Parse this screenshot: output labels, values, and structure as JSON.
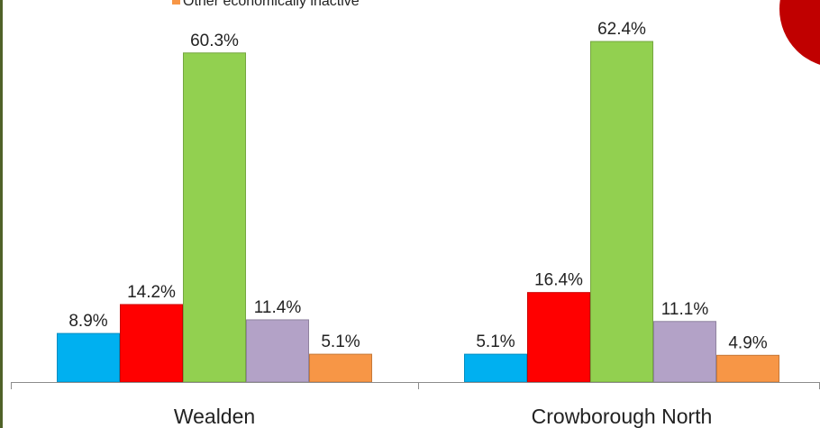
{
  "chart_data": {
    "type": "bar",
    "categories": [
      "Wealden",
      "Crowborough North"
    ],
    "series": [
      {
        "color": "#00b0f0",
        "values": [
          8.9,
          5.1
        ],
        "value_labels": [
          "8.9%",
          "5.1%"
        ]
      },
      {
        "color": "#ff0000",
        "values": [
          14.2,
          16.4
        ],
        "value_labels": [
          "14.2%",
          "16.4%"
        ]
      },
      {
        "color": "#92d050",
        "values": [
          60.3,
          62.4
        ],
        "value_labels": [
          "60.3%",
          "62.4%"
        ]
      },
      {
        "color": "#b3a2c7",
        "values": [
          11.4,
          11.1
        ],
        "value_labels": [
          "11.4%",
          "11.1%"
        ]
      },
      {
        "name": "Other economically inactive",
        "color": "#f79646",
        "values": [
          5.1,
          4.9
        ],
        "value_labels": [
          "5.1%",
          "4.9%"
        ]
      }
    ],
    "ylim": [
      0,
      70
    ]
  }
}
